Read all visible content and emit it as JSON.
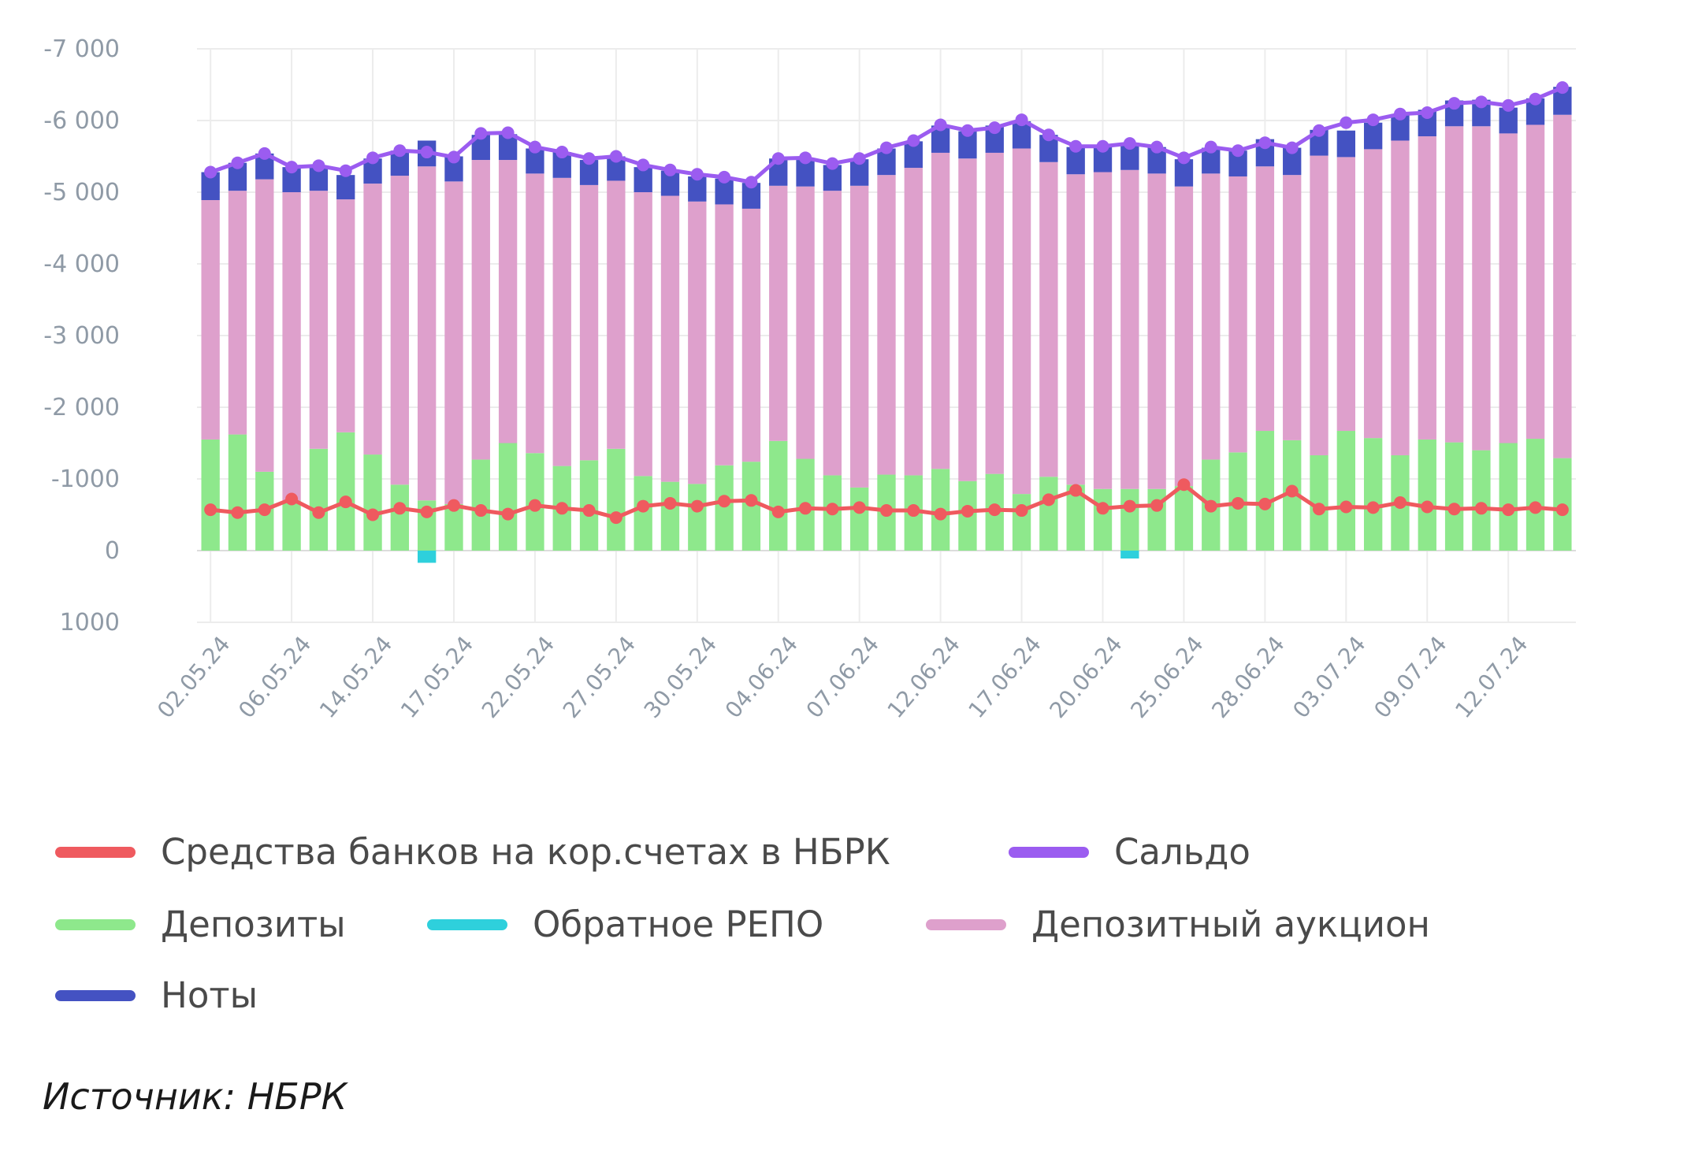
{
  "chart_data": {
    "type": "bar",
    "stacked": true,
    "title": "",
    "xlabel": "",
    "ylabel": "",
    "ylim": [
      1000,
      -7000
    ],
    "y_ticks": [
      "-7 000",
      "-6 000",
      "-5 000",
      "-4 000",
      "-3 000",
      "-2 000",
      "-1000",
      "0",
      "1000"
    ],
    "y_tick_values": [
      -7000,
      -6000,
      -5000,
      -4000,
      -3000,
      -2000,
      -1000,
      0,
      1000
    ],
    "grid": true,
    "legend_position": "bottom",
    "x_tick_labels": [
      {
        "label": "02.05.24",
        "index": 0
      },
      {
        "label": "06.05.24",
        "index": 3
      },
      {
        "label": "14.05.24",
        "index": 6
      },
      {
        "label": "17.05.24",
        "index": 9
      },
      {
        "label": "22.05.24",
        "index": 12
      },
      {
        "label": "27.05.24",
        "index": 15
      },
      {
        "label": "30.05.24",
        "index": 18
      },
      {
        "label": "04.06.24",
        "index": 21
      },
      {
        "label": "07.06.24",
        "index": 24
      },
      {
        "label": "12.06.24",
        "index": 27
      },
      {
        "label": "17.06.24",
        "index": 30
      },
      {
        "label": "20.06.24",
        "index": 33
      },
      {
        "label": "25.06.24",
        "index": 36
      },
      {
        "label": "28.06.24",
        "index": 39
      },
      {
        "label": "03.07.24",
        "index": 42
      },
      {
        "label": "09.07.24",
        "index": 45
      },
      {
        "label": "12.07.24",
        "index": 48
      }
    ],
    "series": [
      {
        "name": "Депозиты",
        "kind": "bar",
        "color": "#8ee88c",
        "values": [
          -1550,
          -1620,
          -1100,
          -700,
          -1420,
          -1650,
          -1340,
          -920,
          -700,
          -650,
          -1270,
          -1500,
          -1360,
          -1180,
          -1260,
          -1420,
          -1040,
          -960,
          -930,
          -1190,
          -1240,
          -1530,
          -1280,
          -1050,
          -880,
          -1060,
          -1050,
          -1140,
          -970,
          -1070,
          -790,
          -1030,
          -920,
          -860,
          -860,
          -860,
          -900,
          -1270,
          -1370,
          -1670,
          -1540,
          -1330,
          -1670,
          -1570,
          -1330,
          -1550,
          -1510,
          -1400,
          -1500,
          -1560,
          -1290
        ]
      },
      {
        "name": "Обратное РЕПО",
        "kind": "bar",
        "color": "#2ed0dc",
        "values": [
          0,
          0,
          0,
          0,
          0,
          0,
          0,
          0,
          170,
          0,
          0,
          0,
          0,
          0,
          0,
          0,
          0,
          0,
          0,
          0,
          0,
          0,
          0,
          0,
          0,
          0,
          0,
          0,
          0,
          0,
          0,
          0,
          0,
          0,
          110,
          0,
          0,
          0,
          0,
          0,
          0,
          0,
          0,
          0,
          0,
          0,
          0,
          0,
          0,
          0,
          0
        ]
      },
      {
        "name": "Депозитный аукцион",
        "kind": "bar",
        "color": "#dea0cc",
        "values": [
          -3340,
          -3400,
          -4080,
          -4300,
          -3600,
          -3250,
          -3780,
          -4310,
          -4660,
          -4500,
          -4180,
          -3950,
          -3900,
          -4020,
          -3840,
          -3740,
          -3960,
          -3990,
          -3940,
          -3640,
          -3530,
          -3560,
          -3800,
          -3970,
          -4210,
          -4180,
          -4290,
          -4410,
          -4500,
          -4480,
          -4820,
          -4390,
          -4330,
          -4420,
          -4450,
          -4400,
          -4180,
          -3990,
          -3850,
          -3690,
          -3700,
          -4180,
          -3820,
          -4030,
          -4390,
          -4230,
          -4410,
          -4520,
          -4320,
          -4380,
          -4790
        ]
      },
      {
        "name": "Ноты",
        "kind": "bar",
        "color": "#4452c2",
        "values": [
          -390,
          -390,
          -360,
          -350,
          -350,
          -340,
          -350,
          -350,
          -360,
          -350,
          -350,
          -360,
          -350,
          -360,
          -350,
          -340,
          -350,
          -350,
          -350,
          -360,
          -360,
          -380,
          -370,
          -360,
          -370,
          -370,
          -370,
          -380,
          -380,
          -380,
          -380,
          -380,
          -380,
          -380,
          -380,
          -370,
          -380,
          -360,
          -360,
          -380,
          -380,
          -360,
          -370,
          -370,
          -370,
          -370,
          -360,
          -370,
          -360,
          -370,
          -390
        ]
      },
      {
        "name": "Средства банков на кор.счетах в НБРК",
        "kind": "line",
        "color": "#ef5a5f",
        "values": [
          -570,
          -530,
          -570,
          -720,
          -530,
          -680,
          -500,
          -590,
          -540,
          -630,
          -560,
          -510,
          -630,
          -590,
          -560,
          -460,
          -620,
          -660,
          -620,
          -690,
          -700,
          -540,
          -590,
          -580,
          -600,
          -560,
          -560,
          -510,
          -550,
          -570,
          -560,
          -710,
          -840,
          -590,
          -620,
          -630,
          -920,
          -620,
          -660,
          -650,
          -830,
          -580,
          -610,
          -600,
          -670,
          -610,
          -580,
          -590,
          -570,
          -600,
          -570
        ]
      },
      {
        "name": "Сальдо",
        "kind": "line",
        "color": "#9b5cf0",
        "values": [
          -5280,
          -5410,
          -5540,
          -5350,
          -5370,
          -5300,
          -5480,
          -5580,
          -5560,
          -5490,
          -5820,
          -5830,
          -5630,
          -5560,
          -5470,
          -5500,
          -5380,
          -5310,
          -5250,
          -5210,
          -5140,
          -5470,
          -5480,
          -5400,
          -5470,
          -5620,
          -5720,
          -5940,
          -5860,
          -5900,
          -6010,
          -5800,
          -5640,
          -5640,
          -5680,
          -5630,
          -5480,
          -5630,
          -5580,
          -5690,
          -5620,
          -5860,
          -5970,
          -6010,
          -6090,
          -6110,
          -6240,
          -6260,
          -6210,
          -6300,
          -6460
        ]
      }
    ]
  },
  "legend": [
    {
      "label": "Средства банков на кор.счетах в НБРК",
      "color": "#ef5a5f"
    },
    {
      "label": "Сальдо",
      "color": "#9b5cf0"
    },
    {
      "label": "Депозиты",
      "color": "#8ee88c"
    },
    {
      "label": "Обратное РЕПО",
      "color": "#2ed0dc"
    },
    {
      "label": "Депозитный аукцион",
      "color": "#dea0cc"
    },
    {
      "label": "Ноты",
      "color": "#4452c2"
    }
  ],
  "source": "Источник: НБРК"
}
